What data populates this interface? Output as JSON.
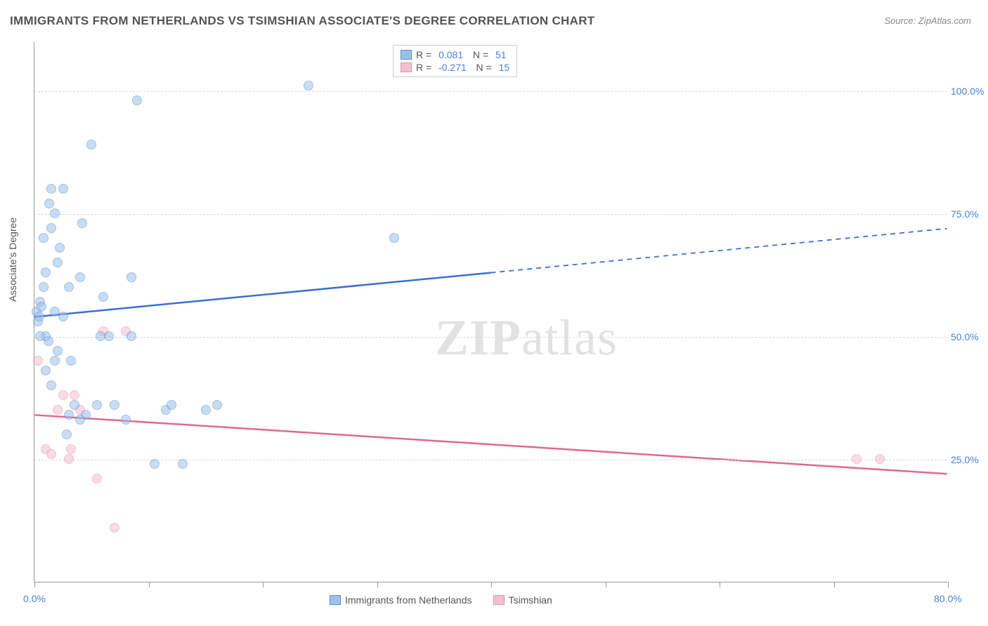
{
  "title": "IMMIGRANTS FROM NETHERLANDS VS TSIMSHIAN ASSOCIATE'S DEGREE CORRELATION CHART",
  "source": "Source: ZipAtlas.com",
  "ylabel": "Associate's Degree",
  "watermark": {
    "zip": "ZIP",
    "atlas": "atlas"
  },
  "chart": {
    "type": "scatter",
    "background_color": "#ffffff",
    "grid_color": "#d8d8d8",
    "axis_color": "#999999",
    "xlim": [
      0,
      80
    ],
    "ylim": [
      0,
      110
    ],
    "x_ticks": [
      0,
      10,
      20,
      30,
      40,
      50,
      60,
      70,
      80
    ],
    "x_tick_labels": {
      "0": "0.0%",
      "80": "80.0%"
    },
    "y_grid": [
      25,
      50,
      75,
      100
    ],
    "y_tick_labels": {
      "25": "25.0%",
      "50": "50.0%",
      "75": "75.0%",
      "100": "100.0%"
    },
    "label_fontsize": 14,
    "title_fontsize": 17,
    "tick_color": "#4a7fd8",
    "marker_radius": 7,
    "marker_opacity": 0.55,
    "series": {
      "neth": {
        "label": "Immigrants from Netherlands",
        "fill": "#9cc0ea",
        "stroke": "#5b8fd0",
        "trend_color": "#3a6fd0",
        "r": "0.081",
        "n": "51",
        "trend": {
          "y_at_x0": 54,
          "y_at_xmax": 72,
          "solid_until_x": 40
        },
        "points": [
          [
            0.2,
            55
          ],
          [
            0.3,
            53
          ],
          [
            0.4,
            54
          ],
          [
            0.5,
            57
          ],
          [
            0.6,
            56
          ],
          [
            0.8,
            60
          ],
          [
            1.0,
            63
          ],
          [
            1.2,
            49
          ],
          [
            1.5,
            72
          ],
          [
            1.8,
            75
          ],
          [
            2.0,
            47
          ],
          [
            1.0,
            50
          ],
          [
            2.5,
            80
          ],
          [
            3.0,
            60
          ],
          [
            3.2,
            45
          ],
          [
            4.0,
            62
          ],
          [
            4.2,
            73
          ],
          [
            5.0,
            89
          ],
          [
            5.5,
            36
          ],
          [
            6.0,
            58
          ],
          [
            6.5,
            50
          ],
          [
            7.0,
            36
          ],
          [
            8.0,
            33
          ],
          [
            8.5,
            62
          ],
          [
            9.0,
            98
          ],
          [
            4.5,
            34
          ],
          [
            10.5,
            24
          ],
          [
            11.5,
            35
          ],
          [
            12.0,
            36
          ],
          [
            13.0,
            24
          ],
          [
            15.0,
            35
          ],
          [
            16.0,
            36
          ],
          [
            2.0,
            65
          ],
          [
            2.2,
            68
          ],
          [
            1.3,
            77
          ],
          [
            1.5,
            80
          ],
          [
            1.8,
            45
          ],
          [
            3.5,
            36
          ],
          [
            4.0,
            33
          ],
          [
            2.8,
            30
          ],
          [
            3.0,
            34
          ],
          [
            1.0,
            43
          ],
          [
            1.5,
            40
          ],
          [
            24.0,
            101
          ],
          [
            31.5,
            70
          ],
          [
            0.8,
            70
          ],
          [
            1.8,
            55
          ],
          [
            2.5,
            54
          ],
          [
            5.8,
            50
          ],
          [
            8.5,
            50
          ],
          [
            0.5,
            50
          ]
        ]
      },
      "tsim": {
        "label": "Tsimshian",
        "fill": "#f3c0d1",
        "stroke": "#e78fb0",
        "trend_color": "#e06890",
        "r": "-0.271",
        "n": "15",
        "trend": {
          "y_at_x0": 34,
          "y_at_xmax": 22,
          "solid_until_x": 80
        },
        "points": [
          [
            0.3,
            45
          ],
          [
            1.0,
            27
          ],
          [
            1.5,
            26
          ],
          [
            2.0,
            35
          ],
          [
            2.5,
            38
          ],
          [
            3.0,
            25
          ],
          [
            3.5,
            38
          ],
          [
            4.0,
            35
          ],
          [
            5.5,
            21
          ],
          [
            7.0,
            11
          ],
          [
            3.2,
            27
          ],
          [
            6.0,
            51
          ],
          [
            72.0,
            25
          ],
          [
            74.0,
            25
          ],
          [
            8.0,
            51
          ]
        ]
      }
    }
  }
}
